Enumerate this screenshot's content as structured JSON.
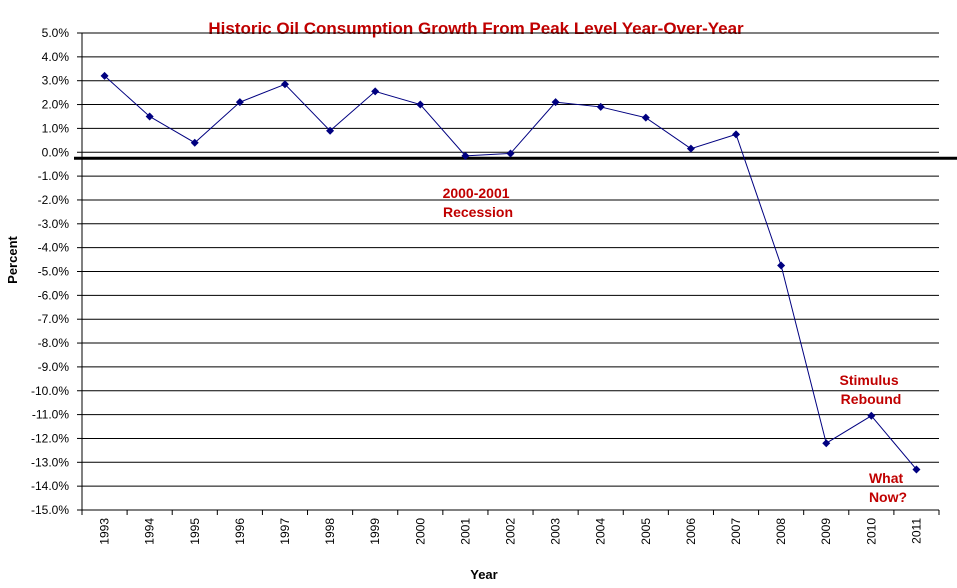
{
  "chart_data": {
    "type": "line",
    "title": "Historic Oil Consumption Growth From Peak Level Year-Over-Year",
    "xlabel": "Year",
    "ylabel": "Percent",
    "categories": [
      "1993",
      "1994",
      "1995",
      "1996",
      "1997",
      "1998",
      "1999",
      "2000",
      "2001",
      "2002",
      "2003",
      "2004",
      "2005",
      "2006",
      "2007",
      "2008",
      "2009",
      "2010",
      "2011"
    ],
    "series": [
      {
        "values": [
          3.2,
          1.5,
          0.4,
          2.1,
          2.85,
          0.9,
          2.55,
          2.0,
          -0.15,
          -0.05,
          2.1,
          1.9,
          1.45,
          0.15,
          0.75,
          -4.75,
          -12.2,
          -11.05,
          -13.3
        ],
        "color": "#000080",
        "marker": "diamond"
      }
    ],
    "ylim": [
      -15,
      5
    ],
    "yticks": [
      5,
      4,
      3,
      2,
      1,
      0,
      -1,
      -2,
      -3,
      -4,
      -5,
      -6,
      -7,
      -8,
      -9,
      -10,
      -11,
      -12,
      -13,
      -14,
      -15
    ],
    "ytick_format": "percent-1dp",
    "grid": "horizontal",
    "reference_line": {
      "value": -0.25,
      "color": "#000000"
    },
    "annotations": [
      {
        "lines": [
          "2000-2001",
          "Recession"
        ],
        "color": "#c00000"
      },
      {
        "lines": [
          "Stimulus",
          "Rebound"
        ],
        "color": "#c00000"
      },
      {
        "lines": [
          "What",
          "Now?"
        ],
        "color": "#c00000"
      }
    ]
  }
}
